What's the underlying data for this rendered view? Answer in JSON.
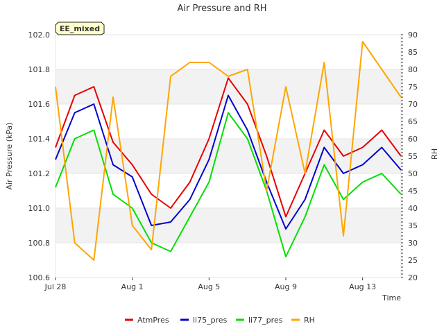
{
  "chart_data": {
    "type": "line",
    "title": "Air Pressure and RH",
    "badge": "EE_mixed",
    "xlabel": "Time",
    "ylabel": "Air Pressure (kPa)",
    "y2label": "RH",
    "x_range": [
      "Jul 28",
      "Aug 15"
    ],
    "x_ticks": [
      "Jul 28",
      "Aug 1",
      "Aug 5",
      "Aug 9",
      "Aug 13"
    ],
    "ylim": [
      100.6,
      102.0
    ],
    "y_ticks": [
      "100.6",
      "100.8",
      "101.0",
      "101.2",
      "101.4",
      "101.6",
      "101.8",
      "102.0"
    ],
    "y2lim": [
      20,
      90
    ],
    "y2_ticks": [
      "20",
      "25",
      "30",
      "35",
      "40",
      "45",
      "50",
      "55",
      "60",
      "65",
      "70",
      "75",
      "80",
      "85",
      "90"
    ],
    "grid": true,
    "legend_position": "bottom",
    "series": [
      {
        "name": "AtmPres",
        "color": "#e60000",
        "axis": "left",
        "x": [
          "Jul 28",
          "Jul 29",
          "Jul 30",
          "Jul 31",
          "Aug 1",
          "Aug 2",
          "Aug 3",
          "Aug 4",
          "Aug 5",
          "Aug 6",
          "Aug 7",
          "Aug 8",
          "Aug 9",
          "Aug 10",
          "Aug 11",
          "Aug 12",
          "Aug 13",
          "Aug 14",
          "Aug 15"
        ],
        "values": [
          101.35,
          101.65,
          101.7,
          101.38,
          101.25,
          101.08,
          101.0,
          101.15,
          101.4,
          101.75,
          101.6,
          101.3,
          100.95,
          101.2,
          101.45,
          101.3,
          101.35,
          101.45,
          101.3
        ]
      },
      {
        "name": "li75_pres",
        "color": "#0000d0",
        "axis": "left",
        "x": [
          "Jul 28",
          "Jul 29",
          "Jul 30",
          "Jul 31",
          "Aug 1",
          "Aug 2",
          "Aug 3",
          "Aug 4",
          "Aug 5",
          "Aug 6",
          "Aug 7",
          "Aug 8",
          "Aug 9",
          "Aug 10",
          "Aug 11",
          "Aug 12",
          "Aug 13",
          "Aug 14",
          "Aug 15"
        ],
        "values": [
          101.28,
          101.55,
          101.6,
          101.25,
          101.18,
          100.9,
          100.92,
          101.05,
          101.28,
          101.65,
          101.45,
          101.15,
          100.88,
          101.05,
          101.35,
          101.2,
          101.25,
          101.35,
          101.22
        ]
      },
      {
        "name": "li77_pres",
        "color": "#00e000",
        "axis": "left",
        "x": [
          "Jul 28",
          "Jul 29",
          "Jul 30",
          "Jul 31",
          "Aug 1",
          "Aug 2",
          "Aug 3",
          "Aug 4",
          "Aug 5",
          "Aug 6",
          "Aug 7",
          "Aug 8",
          "Aug 9",
          "Aug 10",
          "Aug 11",
          "Aug 12",
          "Aug 13",
          "Aug 14",
          "Aug 15"
        ],
        "values": [
          101.12,
          101.4,
          101.45,
          101.08,
          101.0,
          100.8,
          100.75,
          100.95,
          101.15,
          101.55,
          101.4,
          101.1,
          100.72,
          100.95,
          101.25,
          101.05,
          101.15,
          101.2,
          101.08
        ]
      },
      {
        "name": "RH",
        "color": "#ffa500",
        "axis": "right",
        "x": [
          "Jul 28",
          "Jul 29",
          "Jul 30",
          "Jul 31",
          "Aug 1",
          "Aug 2",
          "Aug 3",
          "Aug 4",
          "Aug 5",
          "Aug 6",
          "Aug 7",
          "Aug 8",
          "Aug 9",
          "Aug 10",
          "Aug 11",
          "Aug 12",
          "Aug 13",
          "Aug 14",
          "Aug 15"
        ],
        "values": [
          75,
          30,
          25,
          72,
          35,
          28,
          78,
          82,
          82,
          78,
          80,
          45,
          75,
          50,
          82,
          32,
          88,
          80,
          72
        ]
      }
    ]
  }
}
